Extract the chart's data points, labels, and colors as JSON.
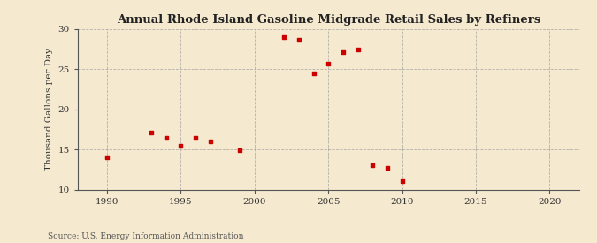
{
  "title": "Annual Rhode Island Gasoline Midgrade Retail Sales by Refiners",
  "ylabel": "Thousand Gallons per Day",
  "source": "Source: U.S. Energy Information Administration",
  "background_color": "#f5e9d0",
  "plot_bg_color": "#f5e9d0",
  "marker_color": "#cc0000",
  "grid_color": "#999999",
  "spine_color": "#555555",
  "xlim": [
    1988,
    2022
  ],
  "ylim": [
    10,
    30
  ],
  "xticks": [
    1990,
    1995,
    2000,
    2005,
    2010,
    2015,
    2020
  ],
  "yticks": [
    10,
    15,
    20,
    25,
    30
  ],
  "data_x": [
    1990,
    1993,
    1994,
    1995,
    1996,
    1997,
    1999,
    2002,
    2003,
    2004,
    2005,
    2006,
    2007,
    2008,
    2009,
    2010
  ],
  "data_y": [
    14.0,
    17.1,
    16.5,
    15.5,
    16.5,
    16.0,
    14.9,
    29.0,
    28.7,
    24.5,
    25.7,
    27.1,
    27.5,
    13.0,
    12.7,
    11.1
  ]
}
